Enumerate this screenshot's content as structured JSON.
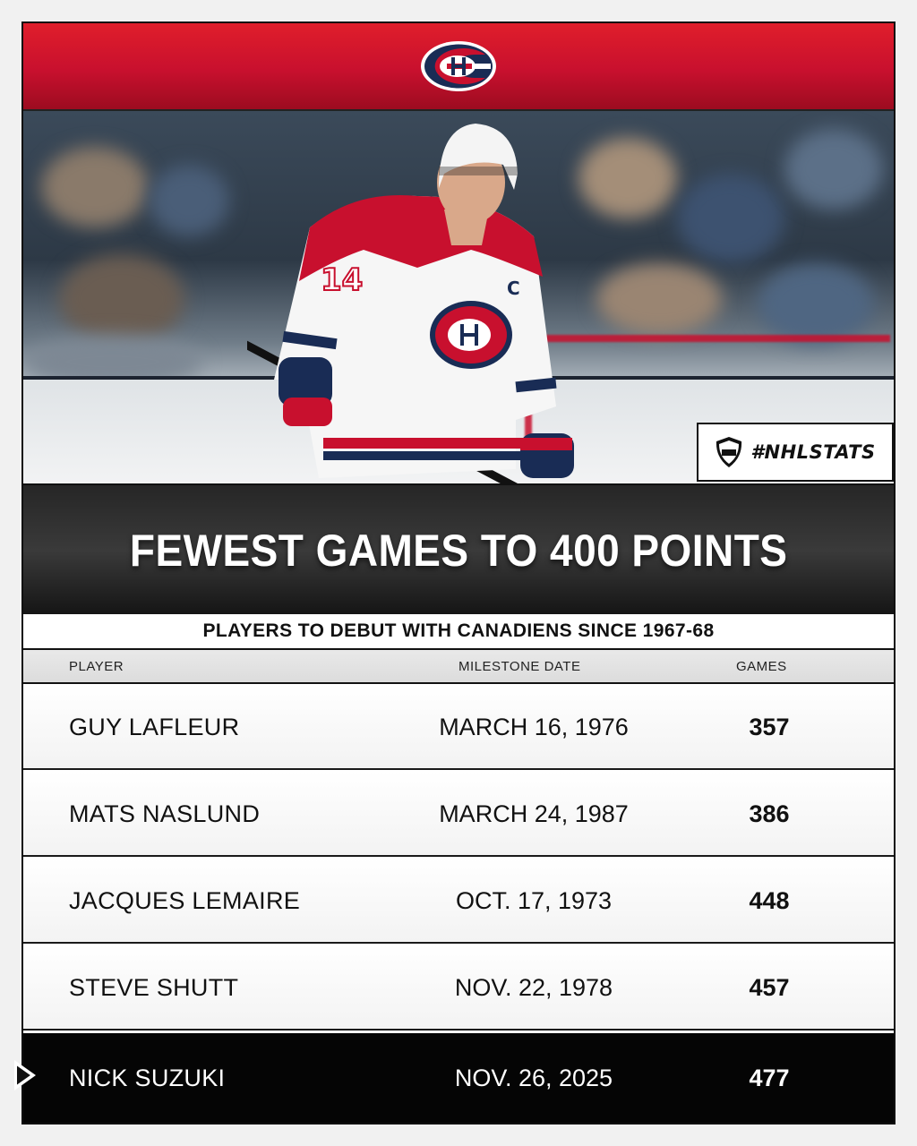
{
  "header": {
    "logo": "canadiens-ch-logo",
    "brand_colors": {
      "red": "#c8102e",
      "blue": "#192c55"
    }
  },
  "photo": {
    "subject": "hockey player in white Canadiens jersey",
    "badge_label": "#NHLSTATS",
    "badge_icon": "nhl-shield-icon"
  },
  "title": "FEWEST GAMES TO 400 POINTS",
  "subtitle": "PLAYERS TO DEBUT WITH CANADIENS SINCE 1967-68",
  "columns": {
    "player": "PLAYER",
    "date": "MILESTONE DATE",
    "games": "GAMES"
  },
  "rows": [
    {
      "player": "GUY LAFLEUR",
      "date": "MARCH 16, 1976",
      "games": "357"
    },
    {
      "player": "MATS NASLUND",
      "date": "MARCH 24, 1987",
      "games": "386"
    },
    {
      "player": "JACQUES LEMAIRE",
      "date": "OCT. 17, 1973",
      "games": "448"
    },
    {
      "player": "STEVE SHUTT",
      "date": "NOV. 22, 1978",
      "games": "457"
    },
    {
      "player": "NICK SUZUKI",
      "date": "NOV. 26, 2025",
      "games": "477",
      "highlighted": true
    }
  ]
}
